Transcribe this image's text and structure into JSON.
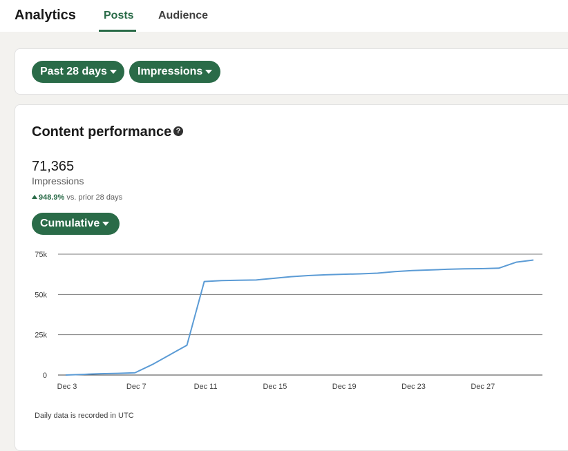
{
  "header": {
    "title": "Analytics",
    "tabs": [
      {
        "label": "Posts",
        "active": true
      },
      {
        "label": "Audience",
        "active": false
      }
    ]
  },
  "filters": {
    "time_range": "Past 28 days",
    "metric": "Impressions"
  },
  "performance": {
    "title": "Content performance",
    "help_icon": "question-circle-icon",
    "total": "71,365",
    "metric_label": "Impressions",
    "change_value": "948.9%",
    "change_suffix": "vs. prior 28 days",
    "mode": "Cumulative",
    "footnote": "Daily data is recorded in UTC"
  },
  "colors": {
    "accent": "#2a6b48",
    "line": "#5b9bd5"
  },
  "chart_data": {
    "type": "line",
    "xlabel": "",
    "ylabel": "",
    "ylim": [
      0,
      75000
    ],
    "yticks": [
      0,
      25000,
      50000,
      75000
    ],
    "ytick_labels": [
      "0",
      "25k",
      "50k",
      "75k"
    ],
    "xtick_labels": [
      "Dec 3",
      "Dec 7",
      "Dec 11",
      "Dec 15",
      "Dec 19",
      "Dec 23",
      "Dec 27"
    ],
    "grid": true,
    "x": [
      3,
      4,
      5,
      6,
      7,
      8,
      9,
      10,
      11,
      12,
      13,
      14,
      15,
      16,
      17,
      18,
      19,
      20,
      21,
      22,
      23,
      24,
      25,
      26,
      27,
      28,
      29,
      30
    ],
    "x_labels": [
      "Dec 3",
      "Dec 4",
      "Dec 5",
      "Dec 6",
      "Dec 7",
      "Dec 8",
      "Dec 9",
      "Dec 10",
      "Dec 11",
      "Dec 12",
      "Dec 13",
      "Dec 14",
      "Dec 15",
      "Dec 16",
      "Dec 17",
      "Dec 18",
      "Dec 19",
      "Dec 20",
      "Dec 21",
      "Dec 22",
      "Dec 23",
      "Dec 24",
      "Dec 25",
      "Dec 26",
      "Dec 27",
      "Dec 28",
      "Dec 29",
      "Dec 30"
    ],
    "series": [
      {
        "values": [
          0,
          400,
          800,
          1000,
          1400,
          6500,
          12500,
          18500,
          58000,
          58600,
          58800,
          59000,
          60000,
          61000,
          61700,
          62200,
          62500,
          62800,
          63200,
          64200,
          64800,
          65200,
          65600,
          65900,
          66000,
          66300,
          70000,
          71365
        ]
      }
    ]
  }
}
